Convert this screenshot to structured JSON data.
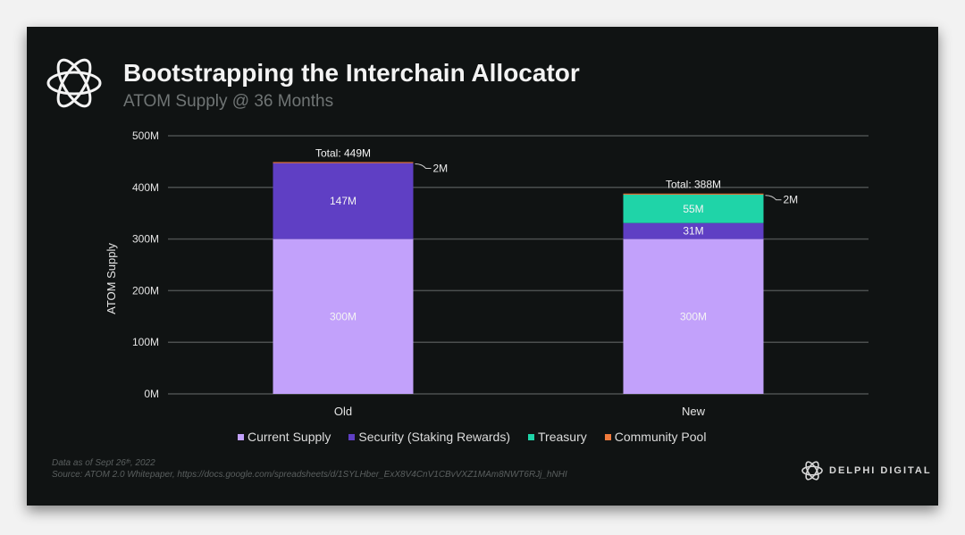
{
  "header": {
    "title": "Bootstrapping the Interchain Allocator",
    "subtitle": "ATOM Supply @ 36 Months"
  },
  "colors": {
    "background": "#101313",
    "current_supply": "#c2a1fb",
    "security": "#5f3fc4",
    "treasury": "#1fd4a8",
    "community_pool": "#f07a3c",
    "gridline": "#4b4f4f"
  },
  "chart_data": {
    "type": "bar",
    "stacked": true,
    "categories": [
      "Old",
      "New"
    ],
    "series": [
      {
        "name": "Current Supply",
        "values": [
          300,
          300
        ],
        "labels": [
          "300M",
          "300M"
        ],
        "color": "#c2a1fb"
      },
      {
        "name": "Security (Staking Rewards)",
        "values": [
          147,
          31
        ],
        "labels": [
          "147M",
          "31M"
        ],
        "color": "#5f3fc4"
      },
      {
        "name": "Treasury",
        "values": [
          0,
          55
        ],
        "labels": [
          "",
          "55M"
        ],
        "color": "#1fd4a8"
      },
      {
        "name": "Community Pool",
        "values": [
          2,
          2
        ],
        "labels": [
          "2M",
          "2M"
        ],
        "color": "#f07a3c"
      }
    ],
    "totals": [
      "Total: 449M",
      "Total: 388M"
    ],
    "ylabel": "ATOM Supply",
    "xlabel": "",
    "ylim": [
      0,
      500
    ],
    "yticks": [
      0,
      100,
      200,
      300,
      400,
      500
    ],
    "ytick_labels": [
      "0M",
      "100M",
      "200M",
      "300M",
      "400M",
      "500M"
    ],
    "grid": true,
    "legend_position": "bottom"
  },
  "legend": {
    "items": [
      "Current Supply",
      "Security (Staking Rewards)",
      "Treasury",
      "Community Pool"
    ]
  },
  "footer": {
    "note_date": "Data as of Sept 26ᵗʰ, 2022",
    "note_source": "Source: ATOM 2.0 Whitepaper, https://docs.google.com/spreadsheets/d/1SYLHber_ExX8V4CnV1CBvVXZ1MAm8NWT6RJj_hNHI",
    "brand": "DELPHI DIGITAL"
  }
}
